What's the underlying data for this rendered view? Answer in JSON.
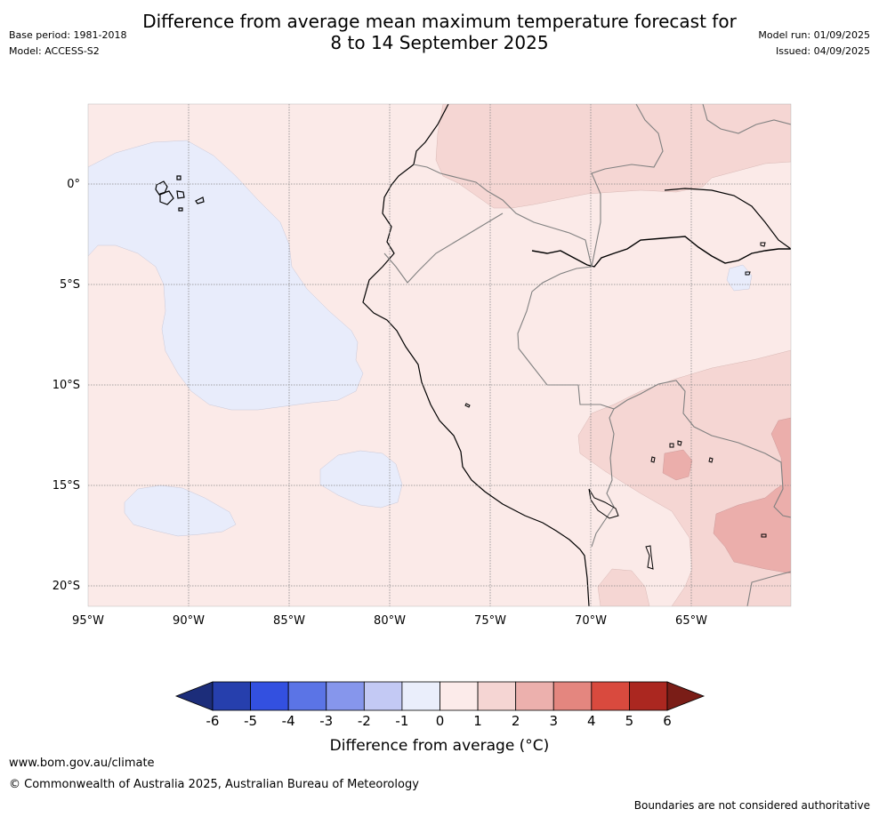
{
  "header": {
    "title_line1": "Difference from average mean maximum temperature forecast for",
    "title_line2": "8 to 14 September 2025",
    "base_period": "Base period: 1981-2018",
    "model": "Model: ACCESS-S2",
    "model_run": "Model run: 01/09/2025",
    "issued": "Issued: 04/09/2025"
  },
  "map": {
    "lat_labels": [
      "0°",
      "5°S",
      "10°S",
      "15°S",
      "20°S"
    ],
    "lon_labels": [
      "95°W",
      "90°W",
      "85°W",
      "80°W",
      "75°W",
      "70°W",
      "65°W"
    ],
    "background_color": "#fbeae8",
    "cool_anomaly_color": "#e8ecfb",
    "warm1_color": "#f5d6d3",
    "warm2_color": "#ebaeab"
  },
  "colorbar": {
    "ticks": [
      "-6",
      "-5",
      "-4",
      "-3",
      "-2",
      "-1",
      "0",
      "1",
      "2",
      "3",
      "4",
      "5",
      "6"
    ],
    "colors": [
      "#1c2d7a",
      "#263fad",
      "#3350e0",
      "#5b74e6",
      "#8696ec",
      "#c3c9f4",
      "#eaeefb",
      "#fcebea",
      "#f5d5d3",
      "#ecb0ad",
      "#e4867f",
      "#d94a3e",
      "#ab2720",
      "#7a1d17"
    ],
    "label": "Difference from average (°C)"
  },
  "footer": {
    "url": "www.bom.gov.au/climate",
    "copyright": "© Commonwealth of Australia 2025, Australian Bureau of Meteorology",
    "disclaimer": "Boundaries are not considered authoritative"
  }
}
